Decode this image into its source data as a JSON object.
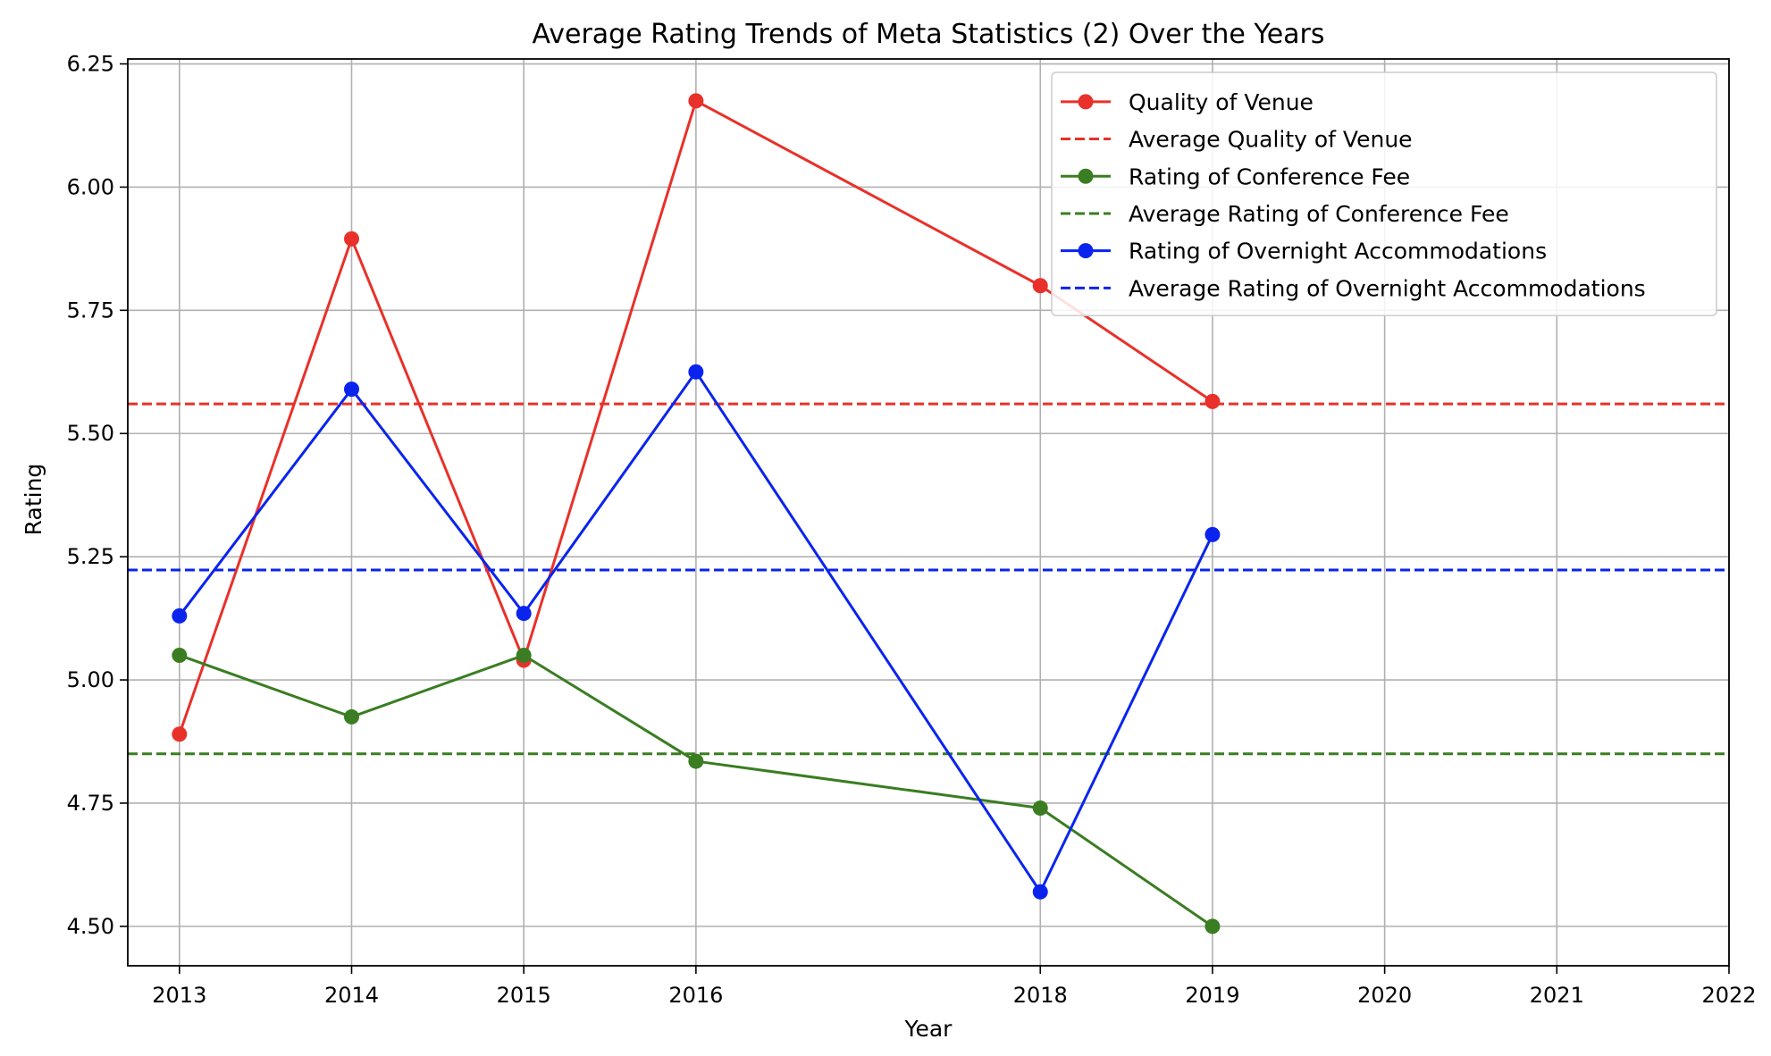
{
  "chart_data": {
    "type": "line",
    "title": "Average Rating Trends of Meta Statistics (2) Over the Years",
    "xlabel": "Year",
    "ylabel": "Rating",
    "xlim": [
      2012.7,
      2022
    ],
    "ylim": [
      4.42,
      6.26
    ],
    "xticks": [
      2013,
      2014,
      2015,
      2016,
      2018,
      2019,
      2020,
      2021,
      2022
    ],
    "yticks": [
      4.5,
      4.75,
      5.0,
      5.25,
      5.5,
      5.75,
      6.0,
      6.25
    ],
    "ytick_labels": [
      "4.50",
      "4.75",
      "5.00",
      "5.25",
      "5.50",
      "5.75",
      "6.00",
      "6.25"
    ],
    "grid": true,
    "legend_position": "top-right",
    "x": [
      2013,
      2014,
      2015,
      2016,
      2018,
      2019
    ],
    "series": [
      {
        "name": "Quality of Venue",
        "color": "#e8312a",
        "values": [
          4.89,
          5.895,
          5.04,
          6.175,
          5.8,
          5.565
        ]
      },
      {
        "name": "Rating of Conference Fee",
        "color": "#3a7d22",
        "values": [
          5.05,
          4.925,
          5.05,
          4.835,
          4.74,
          4.5
        ]
      },
      {
        "name": "Rating of Overnight Accommodations",
        "color": "#0a24ee",
        "values": [
          5.13,
          5.59,
          5.135,
          5.625,
          4.57,
          5.295
        ]
      }
    ],
    "reference_lines": [
      {
        "name": "Average Quality of Venue",
        "color": "#e8312a",
        "value": 5.56
      },
      {
        "name": "Average Rating of Conference Fee",
        "color": "#3a7d22",
        "value": 4.85
      },
      {
        "name": "Average Rating of Overnight Accommodations",
        "color": "#0a24ee",
        "value": 5.223
      }
    ],
    "legend_order": [
      {
        "kind": "series",
        "index": 0
      },
      {
        "kind": "reference",
        "index": 0
      },
      {
        "kind": "series",
        "index": 1
      },
      {
        "kind": "reference",
        "index": 1
      },
      {
        "kind": "series",
        "index": 2
      },
      {
        "kind": "reference",
        "index": 2
      }
    ]
  }
}
